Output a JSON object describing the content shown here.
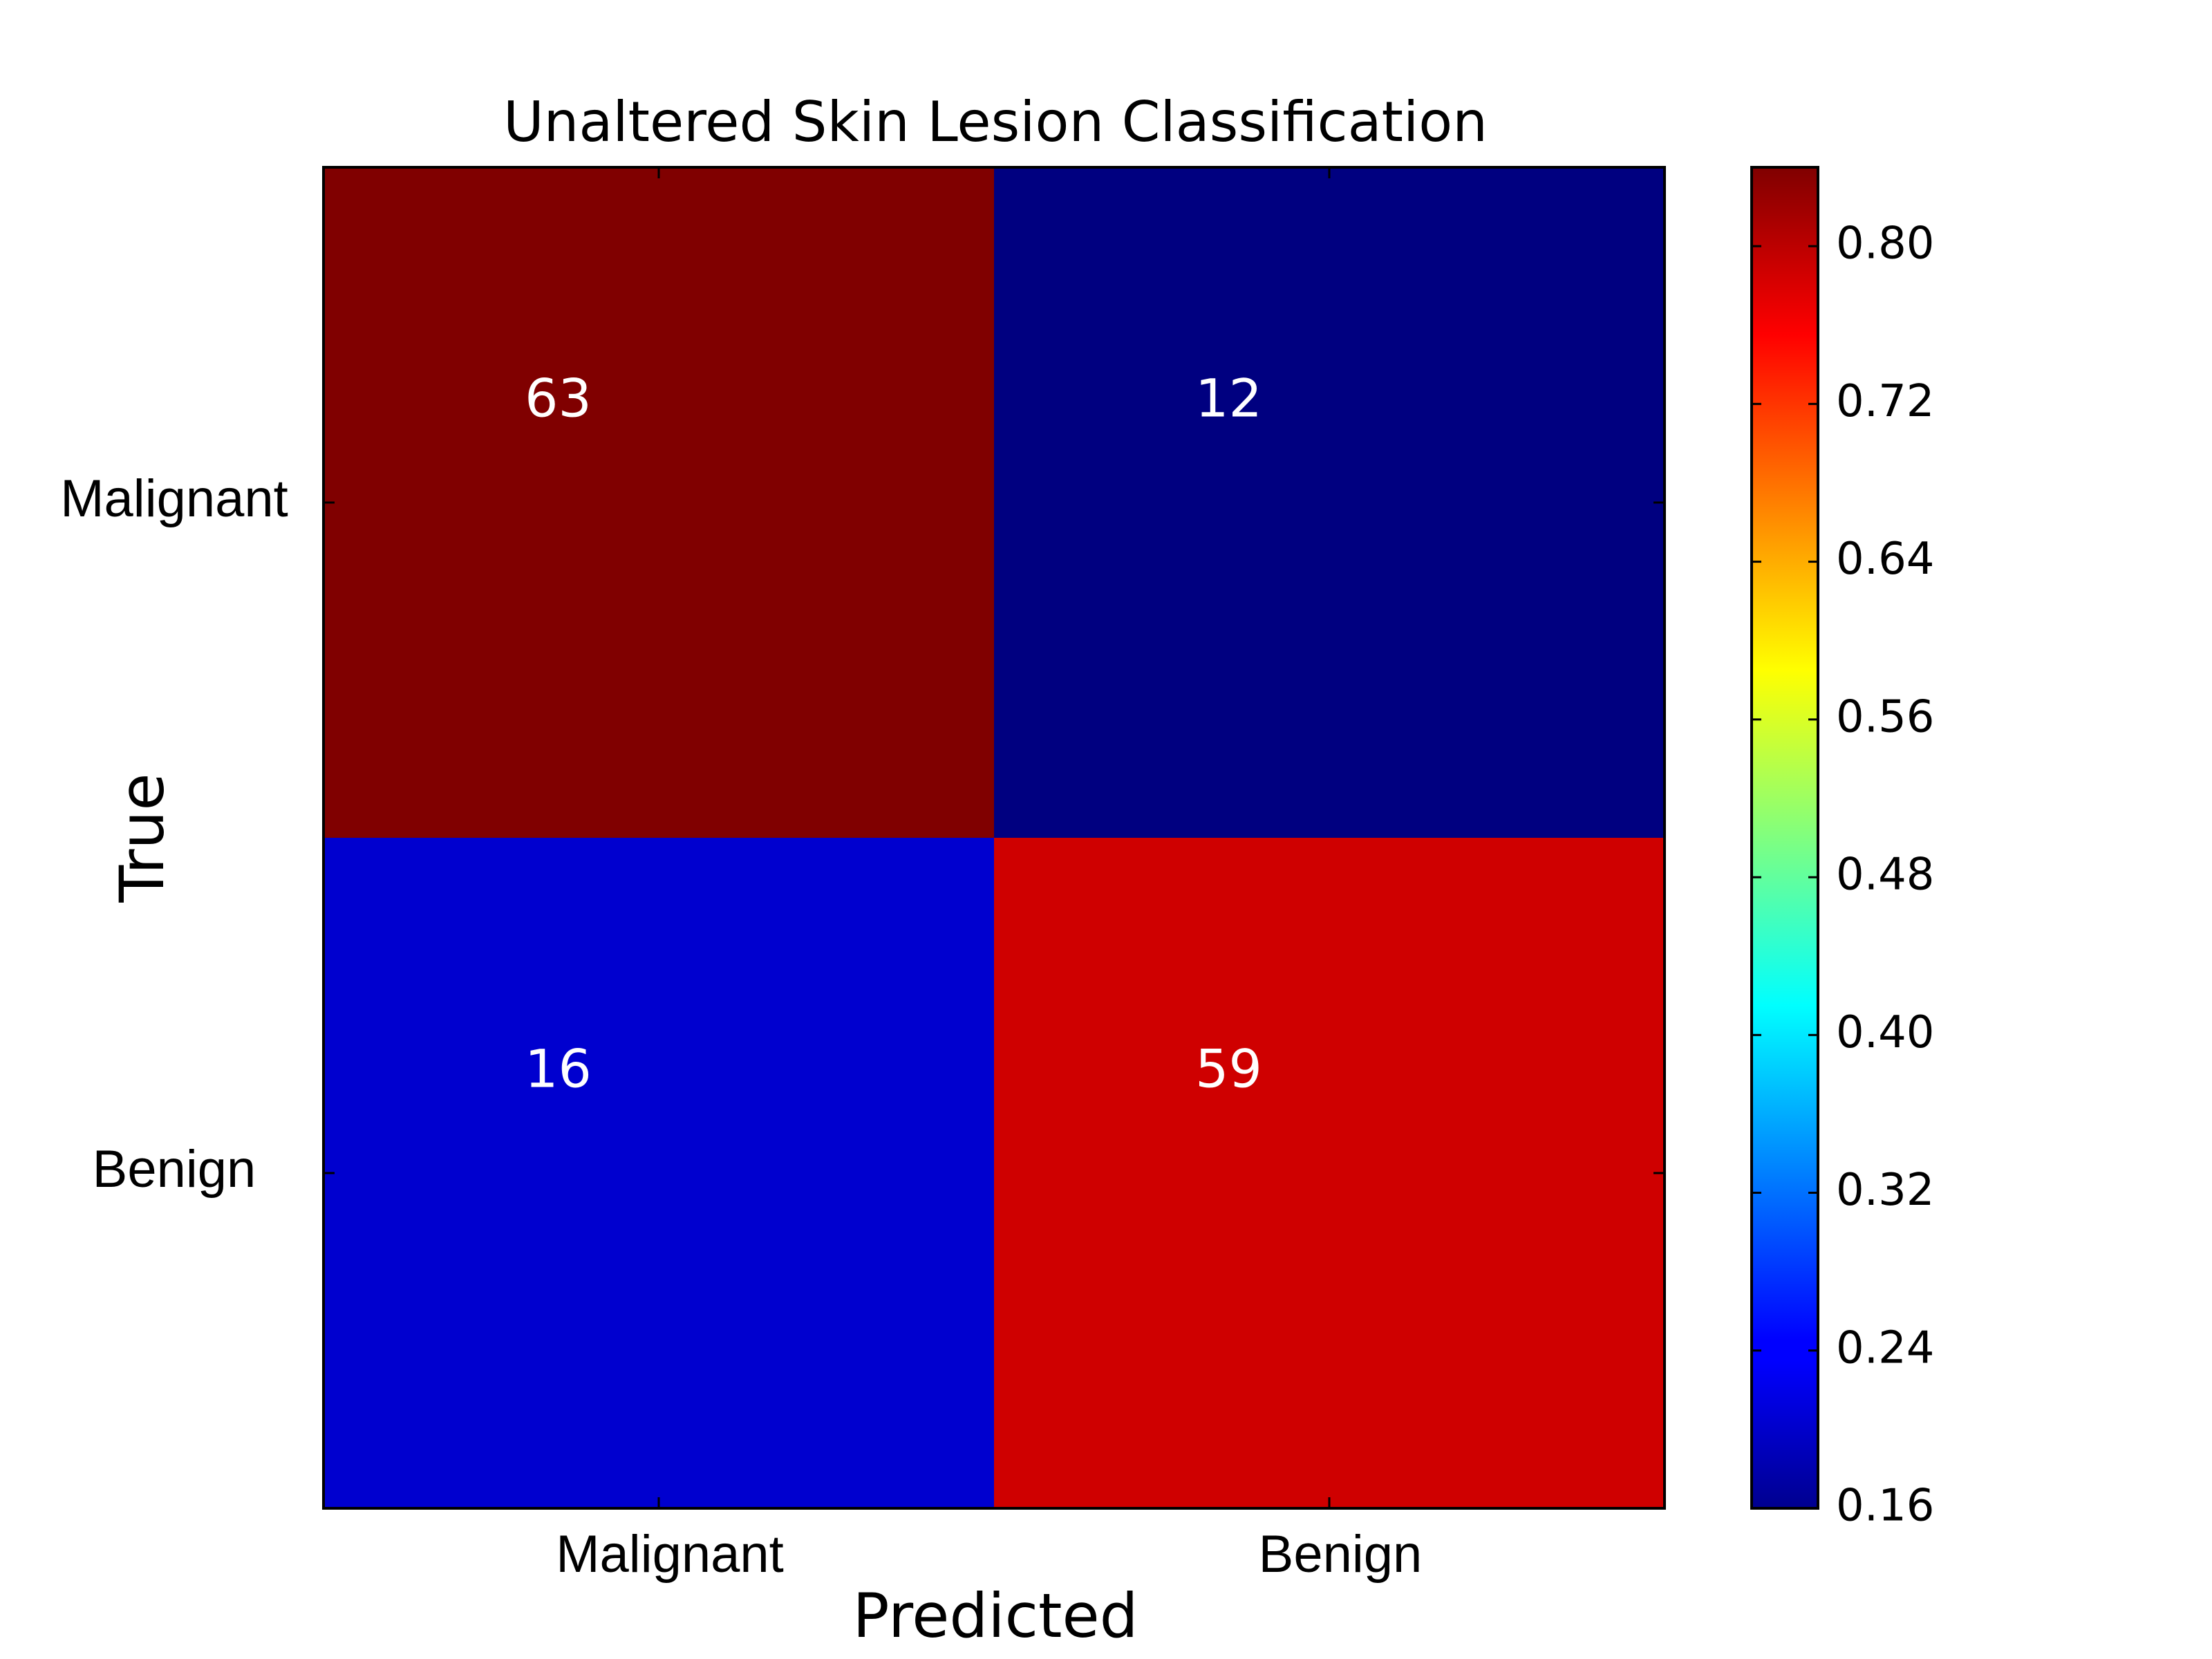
{
  "chart_data": {
    "type": "heatmap",
    "title": "Unaltered Skin Lesion Classification",
    "xlabel": "Predicted",
    "ylabel": "True",
    "x_categories": [
      "Malignant",
      "Benign"
    ],
    "y_categories": [
      "Malignant",
      "Benign"
    ],
    "counts": [
      [
        63,
        12
      ],
      [
        16,
        59
      ]
    ],
    "normalized": [
      [
        0.84,
        0.16
      ],
      [
        0.2133,
        0.7867
      ]
    ],
    "colormap": "jet",
    "colorbar": {
      "range": [
        0.16,
        0.84
      ],
      "ticks": [
        "0.16",
        "0.24",
        "0.32",
        "0.40",
        "0.48",
        "0.56",
        "0.64",
        "0.72",
        "0.80"
      ],
      "placement": "right"
    },
    "grid": false,
    "cell_text_color": "#ffffff"
  }
}
